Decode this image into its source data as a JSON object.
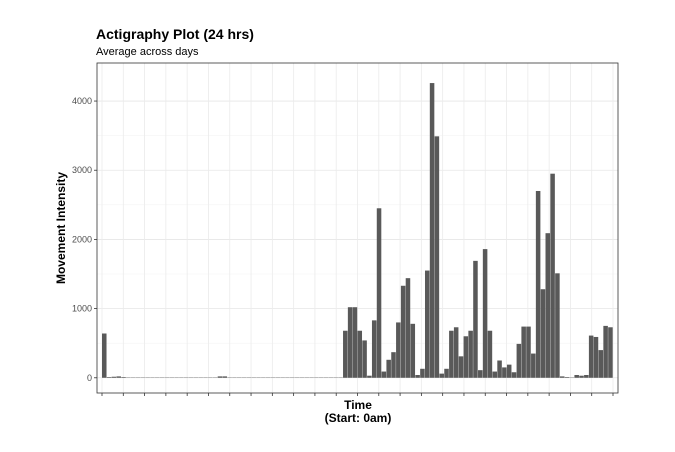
{
  "chart_data": {
    "type": "bar",
    "title": "Actigraphy Plot (24 hrs)",
    "subtitle": "Average across days",
    "xlabel": "Time",
    "xlabel_sub": "(Start: 0am)",
    "ylabel": "Movement Intensity",
    "ylim": [
      -220,
      4550
    ],
    "yticks": [
      0,
      1000,
      2000,
      3000,
      4000
    ],
    "grid": true,
    "bar_color": "#595959",
    "x_tick_count": 25,
    "values": [
      640,
      10,
      15,
      20,
      10,
      5,
      5,
      5,
      5,
      5,
      5,
      5,
      5,
      5,
      5,
      5,
      5,
      5,
      5,
      5,
      5,
      5,
      5,
      5,
      20,
      20,
      5,
      5,
      5,
      5,
      5,
      5,
      5,
      5,
      5,
      5,
      5,
      5,
      5,
      5,
      5,
      5,
      5,
      5,
      5,
      5,
      5,
      5,
      5,
      5,
      680,
      1020,
      1020,
      680,
      540,
      30,
      830,
      2450,
      90,
      260,
      370,
      800,
      1330,
      1440,
      780,
      40,
      130,
      1550,
      4260,
      3490,
      60,
      130,
      680,
      730,
      310,
      600,
      680,
      1690,
      110,
      1860,
      680,
      90,
      250,
      150,
      190,
      80,
      490,
      740,
      740,
      350,
      2700,
      1280,
      2090,
      2950,
      1510,
      20,
      10,
      5,
      40,
      30,
      40,
      610,
      590,
      400,
      750,
      730
    ]
  }
}
